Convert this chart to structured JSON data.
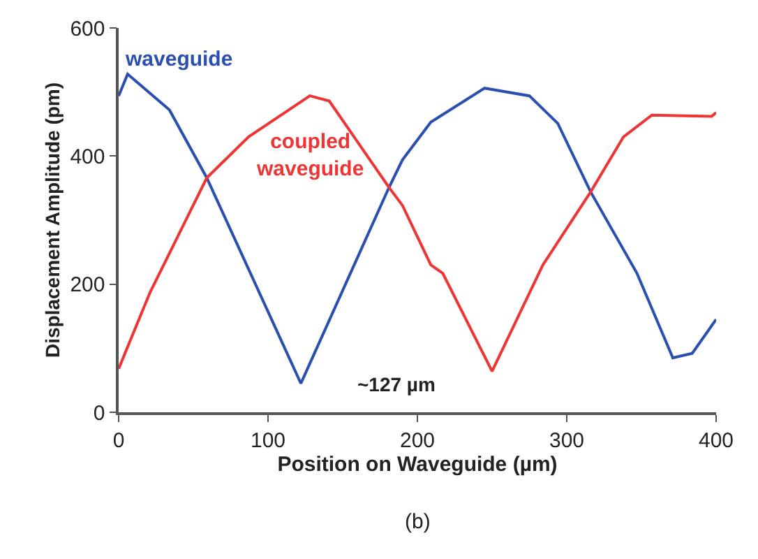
{
  "chart_data": {
    "type": "line",
    "xlabel": "Position on Waveguide (µm)",
    "ylabel": "Displacement Amplitude (pm)",
    "xlim": [
      0,
      400
    ],
    "xticks": [
      0,
      100,
      200,
      300,
      400
    ],
    "ylim": [
      0,
      600
    ],
    "yticks": [
      0,
      200,
      400,
      600
    ],
    "legend": false,
    "marker": "none",
    "line_style": "solid",
    "series": [
      {
        "name": "waveguide",
        "color": "#2a4fb0",
        "x": [
          0,
          6,
          34,
          59,
          122,
          181,
          190,
          209,
          245,
          275,
          294,
          316,
          347,
          371,
          384,
          400
        ],
        "values": [
          494,
          528,
          472,
          366,
          45,
          351,
          394,
          453,
          506,
          494,
          451,
          344,
          217,
          85,
          92,
          145
        ]
      },
      {
        "name": "coupled waveguide",
        "color": "#ee3535",
        "x": [
          0,
          21,
          59,
          87,
          128,
          141,
          181,
          190,
          209,
          217,
          250,
          284,
          316,
          338,
          357,
          397,
          400
        ],
        "values": [
          68,
          187,
          366,
          430,
          494,
          486,
          351,
          323,
          230,
          217,
          64,
          230,
          344,
          430,
          464,
          462,
          468
        ]
      }
    ],
    "annotations": [
      "~127 µm",
      "(b)"
    ]
  }
}
